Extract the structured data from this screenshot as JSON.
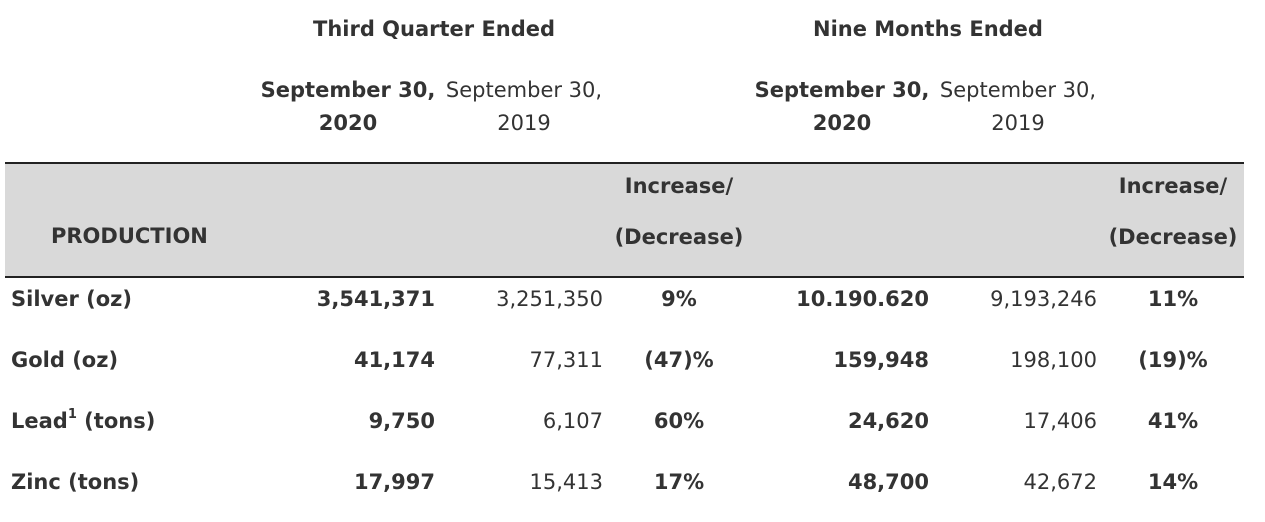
{
  "header": {
    "quarter_title": "Third Quarter Ended",
    "nine_months_title": "Nine Months Ended",
    "quarter_col_2020": {
      "line1": "September 30,",
      "line2": "2020"
    },
    "quarter_col_2019": {
      "line1": "September 30,",
      "line2": "2019"
    },
    "nine_col_2020": {
      "line1": "September 30,",
      "line2": "2020"
    },
    "nine_col_2019": {
      "line1": "September 30,",
      "line2": "2019"
    }
  },
  "band": {
    "label": "PRODUCTION",
    "change_q": {
      "line1": "Increase/",
      "line2": "(Decrease)"
    },
    "change_n": {
      "line1": "Increase/",
      "line2": "(Decrease)"
    }
  },
  "rows": [
    {
      "name": "Silver (oz)",
      "sup": "",
      "q2020": "3,541,371",
      "q2019": "3,251,350",
      "q_change": "9%",
      "n2020": "10.190.620",
      "n2019": "9,193,246",
      "n_change": "11%"
    },
    {
      "name": "Gold (oz)",
      "sup": "",
      "q2020": "41,174",
      "q2019": "77,311",
      "q_change": "(47)%",
      "n2020": "159,948",
      "n2019": "198,100",
      "n_change": "(19)%"
    },
    {
      "name": "Lead",
      "sup": "1",
      "name_suffix": " (tons)",
      "q2020": "9,750",
      "q2019": "6,107",
      "q_change": "60%",
      "n2020": "24,620",
      "n2019": "17,406",
      "n_change": "41%"
    },
    {
      "name": "Zinc (tons)",
      "sup": "",
      "q2020": "17,997",
      "q2019": "15,413",
      "q_change": "17%",
      "n2020": "48,700",
      "n2019": "42,672",
      "n_change": "14%"
    }
  ]
}
